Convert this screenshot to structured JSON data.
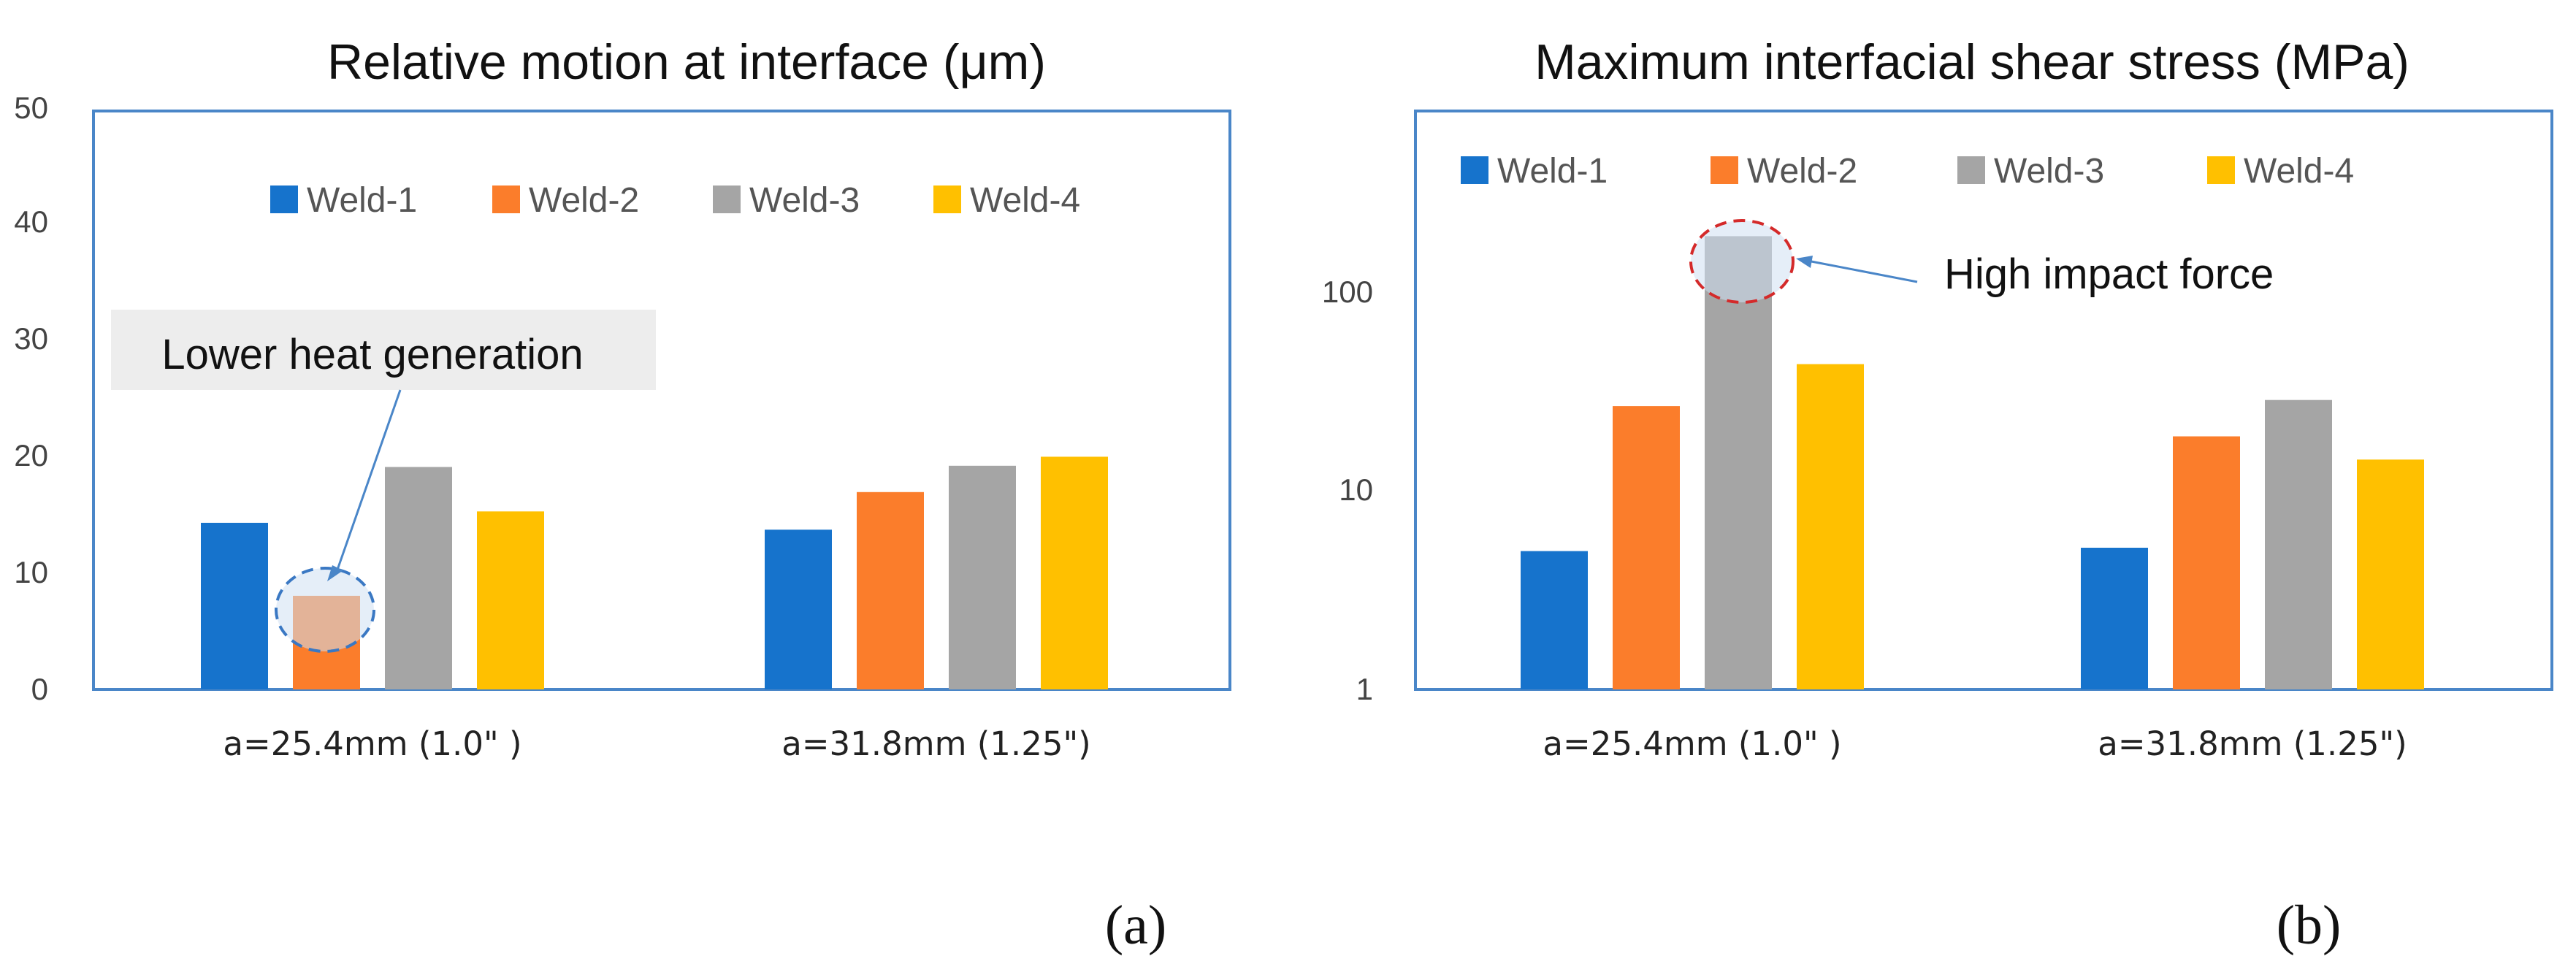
{
  "colors": {
    "weld1": "#1673CC",
    "weld2": "#FB7D2B",
    "weld3": "#A5A5A5",
    "weld4": "#FFC000",
    "frame": "#4A86C8",
    "arrow": "#4A86C8"
  },
  "chart_data": [
    {
      "type": "bar",
      "title": "Relative motion at interface (μm)",
      "categories": [
        "a=25.4mm (1.0\" )",
        "a=31.8mm (1.25\")"
      ],
      "series": [
        {
          "name": "Weld-1",
          "values": [
            14.6,
            14.0
          ]
        },
        {
          "name": "Weld-2",
          "values": [
            8.2,
            17.3
          ]
        },
        {
          "name": "Weld-3",
          "values": [
            19.5,
            19.6
          ]
        },
        {
          "name": "Weld-4",
          "values": [
            15.6,
            20.4
          ]
        }
      ],
      "yscale": "linear",
      "ylim": [
        0,
        50
      ],
      "yticks": [
        "0",
        "10",
        "20",
        "30",
        "40",
        "50"
      ],
      "legend": "top",
      "annotation": {
        "text": "Lower heat generation",
        "target": "Weld-2 at a=25.4mm"
      },
      "panel_label": "(a)"
    },
    {
      "type": "bar",
      "title": "Maximum interfacial shear stress (MPa)",
      "categories": [
        "a=25.4mm (1.0\" )",
        "a=31.8mm (1.25\")"
      ],
      "series": [
        {
          "name": "Weld-1",
          "values": [
            5.0,
            5.2
          ]
        },
        {
          "name": "Weld-2",
          "values": [
            27,
            19
          ]
        },
        {
          "name": "Weld-3",
          "values": [
            195,
            29
          ]
        },
        {
          "name": "Weld-4",
          "values": [
            44,
            14.5
          ]
        }
      ],
      "yscale": "log",
      "ylim": [
        1,
        1000
      ],
      "yticks": [
        "1",
        "10",
        "100"
      ],
      "legend": "top",
      "annotation": {
        "text": "High impact force",
        "target": "Weld-3 at a=25.4mm"
      },
      "panel_label": "(b)"
    }
  ]
}
